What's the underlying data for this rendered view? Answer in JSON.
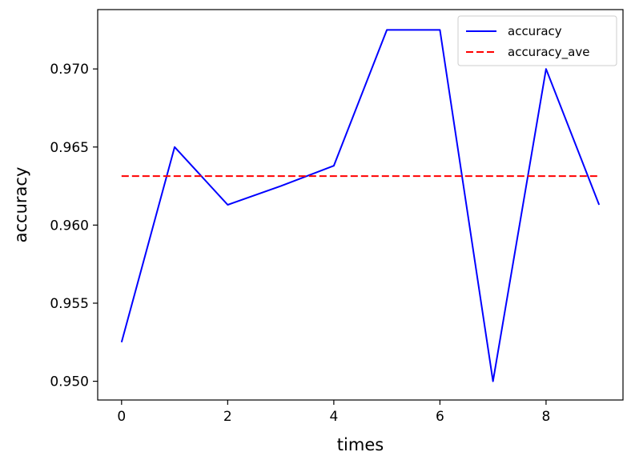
{
  "chart_data": {
    "type": "line",
    "title": "",
    "xlabel": "times",
    "ylabel": "accuracy",
    "xlim": [
      -0.45,
      9.45
    ],
    "ylim": [
      0.9488,
      0.9738
    ],
    "x_ticks": [
      0,
      2,
      4,
      6,
      8
    ],
    "x_tick_labels": [
      "0",
      "2",
      "4",
      "6",
      "8"
    ],
    "y_ticks": [
      0.95,
      0.955,
      0.96,
      0.965,
      0.97
    ],
    "y_tick_labels": [
      "0.950",
      "0.955",
      "0.960",
      "0.965",
      "0.970"
    ],
    "grid": false,
    "legend_position": "top-right",
    "x": [
      0,
      1,
      2,
      3,
      4,
      5,
      6,
      7,
      8,
      9
    ],
    "series": [
      {
        "name": "accuracy",
        "color": "#0000ff",
        "style": "solid",
        "values": [
          0.9525,
          0.965,
          0.9613,
          0.9625,
          0.9638,
          0.9725,
          0.9725,
          0.95,
          0.97,
          0.9613
        ]
      },
      {
        "name": "accuracy_ave",
        "color": "#ff0000",
        "style": "dashed",
        "values": [
          0.96314,
          0.96314,
          0.96314,
          0.96314,
          0.96314,
          0.96314,
          0.96314,
          0.96314,
          0.96314,
          0.96314
        ]
      }
    ]
  }
}
